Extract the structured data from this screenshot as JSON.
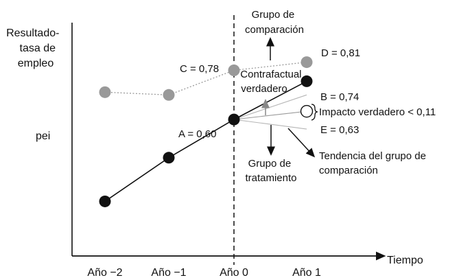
{
  "chart_data": {
    "type": "line",
    "categories": [
      "Año −2",
      "Año −1",
      "Año 0",
      "Año 1"
    ],
    "xlabel": "Tiempo",
    "ylabel_lines": [
      "Resultado-",
      "tasa de",
      "empleo"
    ],
    "y_tick_label": "pei",
    "series": [
      {
        "key": "comparacion",
        "color": "#999999",
        "values": [
          0.7,
          0.69,
          0.78,
          0.81
        ]
      },
      {
        "key": "tratamiento",
        "color": "#111111",
        "values": [
          0.3,
          0.46,
          0.6,
          0.74
        ]
      }
    ],
    "counterfactual": {
      "color": "#ffffff",
      "value": 0.63
    },
    "point_labels": {
      "A": "A = 0,60",
      "B": "B = 0,74",
      "C": "C = 0,78",
      "D": "D = 0,81",
      "E": "E = 0,63"
    },
    "annotations": {
      "grupo_comparacion": [
        "Grupo de",
        "comparación"
      ],
      "contrafactual": [
        "Contrafactual",
        "verdadero"
      ],
      "grupo_tratamiento": [
        "Grupo de",
        "tratamiento"
      ],
      "impacto": "Impacto verdadero < 0,11",
      "tendencia": [
        "Tendencia del grupo de",
        "comparación"
      ]
    },
    "vertical_reference": "Año 0",
    "ylim": [
      0.1,
      1.0
    ]
  }
}
